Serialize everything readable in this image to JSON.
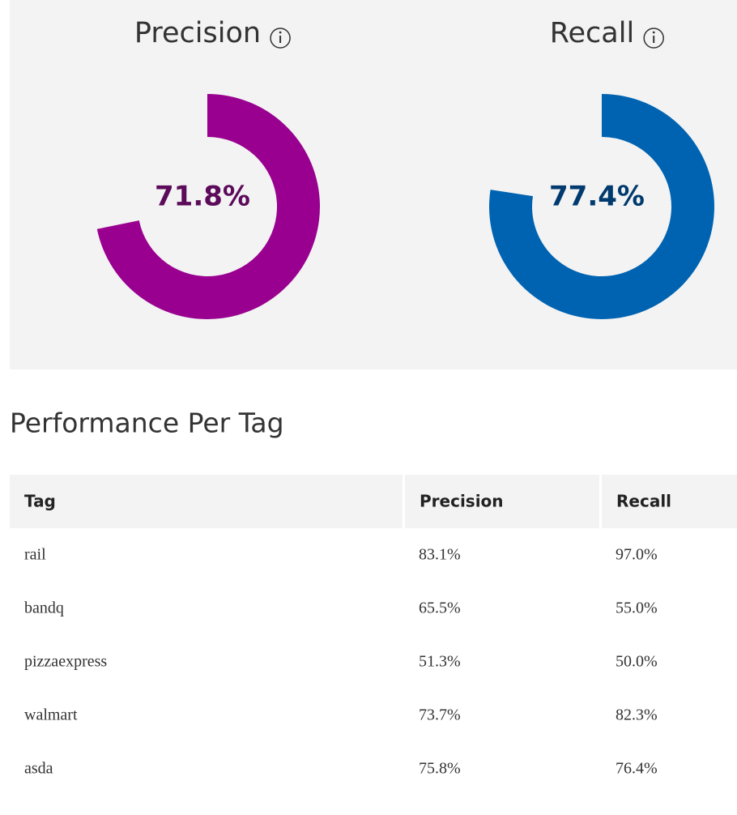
{
  "chart_data": [
    {
      "type": "donut",
      "title": "Precision",
      "values": [
        71.8
      ],
      "value_labels": [
        "71.8%"
      ],
      "color": "#990090",
      "label_color": "#5c0a5a",
      "ylim": [
        0,
        100
      ]
    },
    {
      "type": "donut",
      "title": "Recall",
      "values": [
        77.4
      ],
      "value_labels": [
        "77.4%"
      ],
      "color": "#0063b1",
      "label_color": "#003a6e",
      "ylim": [
        0,
        100
      ]
    }
  ],
  "section_title": "Performance Per Tag",
  "table": {
    "header": [
      "Tag",
      "Precision",
      "Recall"
    ],
    "rows": [
      [
        "rail",
        "83.1%",
        "97.0%"
      ],
      [
        "bandq",
        "65.5%",
        "55.0%"
      ],
      [
        "pizzaexpress",
        "51.3%",
        "50.0%"
      ],
      [
        "walmart",
        "73.7%",
        "82.3%"
      ],
      [
        "asda",
        "75.8%",
        "76.4%"
      ]
    ]
  }
}
